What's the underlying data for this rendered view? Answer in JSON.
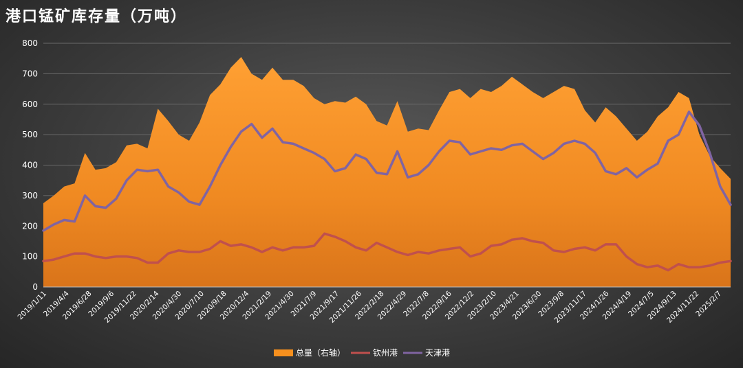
{
  "chart_data": {
    "type": "area",
    "title": "港口锰矿库存量（万吨）",
    "ylim": [
      0,
      800
    ],
    "yticks": [
      0,
      100,
      200,
      300,
      400,
      500,
      600,
      700,
      800
    ],
    "grid": true,
    "legend_position": "bottom",
    "x_tick_labels": [
      "2019/1/11",
      "2019/4/4",
      "2019/6/28",
      "2019/9/6",
      "2019/11/22",
      "2020/2/14",
      "2020/4/30",
      "2020/7/10",
      "2020/9/18",
      "2020/12/4",
      "2021/2/19",
      "2021/4/30",
      "2021/7/9",
      "2021/9/17",
      "2021/11/26",
      "2022/2/18",
      "2022/4/29",
      "2022/7/8",
      "2022/9/16",
      "2022/12/2",
      "2023/2/10",
      "2023/4/21",
      "2023/6/30",
      "2023/9/8",
      "2023/11/17",
      "2024/1/26",
      "2024/4/19",
      "2024/7/5",
      "2024/9/13",
      "2024/11/22",
      "2025/2/7"
    ],
    "series": [
      {
        "name": "总量（右轴）",
        "type": "area",
        "color": "#F7901E",
        "values": [
          275,
          300,
          330,
          340,
          440,
          385,
          390,
          410,
          465,
          470,
          455,
          585,
          545,
          500,
          480,
          540,
          630,
          665,
          720,
          755,
          700,
          680,
          720,
          680,
          680,
          660,
          620,
          600,
          610,
          605,
          625,
          600,
          545,
          530,
          610,
          510,
          520,
          515,
          580,
          640,
          650,
          620,
          650,
          640,
          660,
          690,
          665,
          640,
          620,
          640,
          660,
          650,
          580,
          540,
          590,
          560,
          520,
          480,
          510,
          560,
          590,
          640,
          620,
          500,
          430,
          390,
          355
        ]
      },
      {
        "name": "钦州港",
        "type": "line",
        "color": "#C0504D",
        "values": [
          85,
          90,
          100,
          110,
          110,
          100,
          95,
          100,
          100,
          95,
          80,
          80,
          110,
          120,
          115,
          115,
          125,
          150,
          135,
          140,
          130,
          115,
          130,
          120,
          130,
          130,
          135,
          175,
          165,
          150,
          130,
          120,
          145,
          130,
          115,
          105,
          115,
          110,
          120,
          125,
          130,
          100,
          110,
          135,
          140,
          155,
          160,
          150,
          145,
          120,
          115,
          125,
          130,
          120,
          140,
          140,
          100,
          75,
          65,
          70,
          55,
          75,
          65,
          65,
          70,
          80,
          85
        ]
      },
      {
        "name": "天津港",
        "type": "line",
        "color": "#8064A2",
        "values": [
          185,
          205,
          220,
          215,
          300,
          265,
          260,
          290,
          350,
          385,
          380,
          385,
          330,
          310,
          280,
          270,
          330,
          400,
          460,
          510,
          535,
          490,
          520,
          475,
          470,
          455,
          440,
          420,
          380,
          390,
          435,
          420,
          375,
          370,
          445,
          360,
          370,
          400,
          445,
          480,
          475,
          435,
          445,
          455,
          450,
          465,
          470,
          445,
          420,
          440,
          470,
          480,
          470,
          440,
          380,
          370,
          390,
          360,
          385,
          405,
          480,
          500,
          575,
          530,
          440,
          330,
          270
        ]
      }
    ]
  }
}
